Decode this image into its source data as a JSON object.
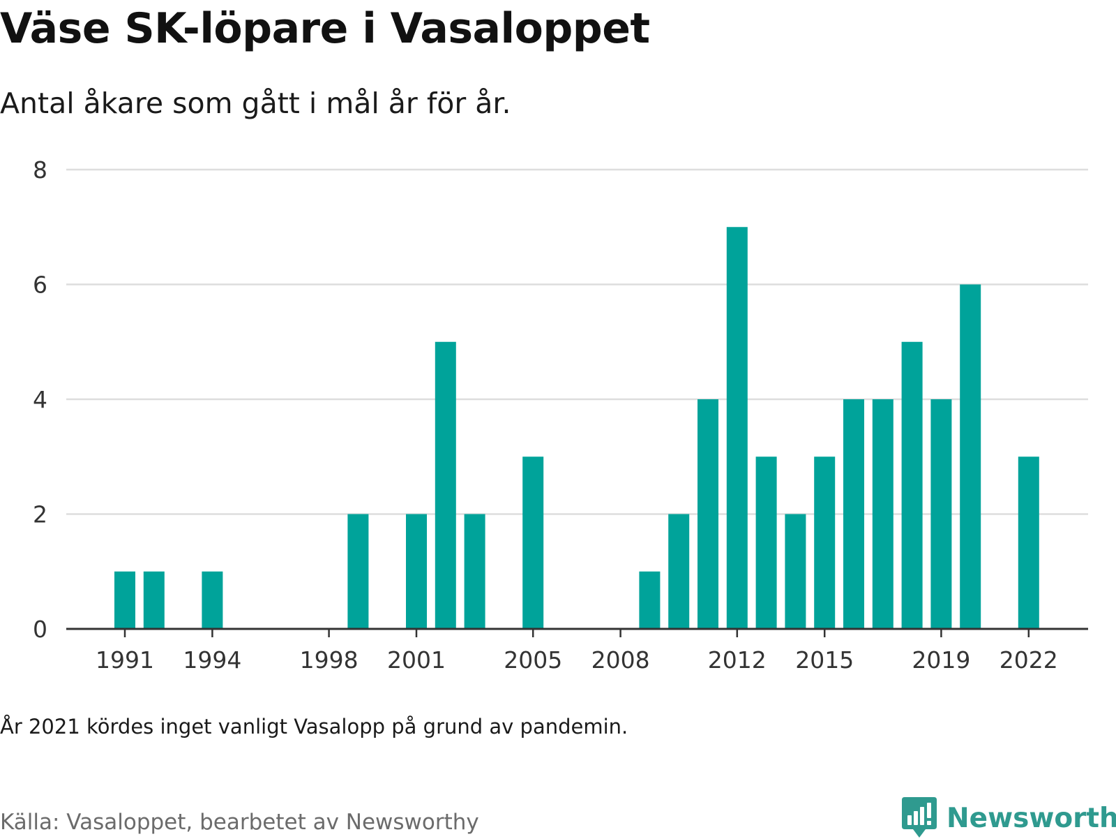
{
  "chart_data": {
    "type": "bar",
    "title": "Väse SK-löpare i Vasaloppet",
    "subtitle": "Antal åkare som gått i mål år för år.",
    "x": [
      1991,
      1992,
      1993,
      1994,
      1995,
      1996,
      1997,
      1998,
      1999,
      2000,
      2001,
      2002,
      2003,
      2004,
      2005,
      2006,
      2007,
      2008,
      2009,
      2010,
      2011,
      2012,
      2013,
      2014,
      2015,
      2016,
      2017,
      2018,
      2019,
      2020,
      2021,
      2022
    ],
    "values": [
      1,
      1,
      0,
      1,
      0,
      0,
      0,
      0,
      2,
      0,
      2,
      5,
      2,
      0,
      3,
      0,
      0,
      0,
      1,
      2,
      4,
      7,
      3,
      2,
      3,
      4,
      4,
      5,
      4,
      6,
      0,
      3
    ],
    "x_tick_labels": [
      "1991",
      "1994",
      "1998",
      "2001",
      "2005",
      "2008",
      "2012",
      "2015",
      "2019",
      "2022"
    ],
    "y_tick_labels": [
      "0",
      "2",
      "4",
      "6",
      "8"
    ],
    "ylim": [
      0,
      8
    ],
    "xlabel": "",
    "ylabel": "",
    "grid": true,
    "bar_color": "#00a39a",
    "grid_color": "#dddddd",
    "axis_color": "#333333"
  },
  "note": "År 2021 kördes inget vanligt Vasalopp på grund av pandemin.",
  "source": "Källa: Vasaloppet, bearbetet av Newsworthy",
  "brand": {
    "name": "Newsworthy",
    "icon": "newsworthy-logo-icon",
    "color": "#2f9a8f"
  }
}
